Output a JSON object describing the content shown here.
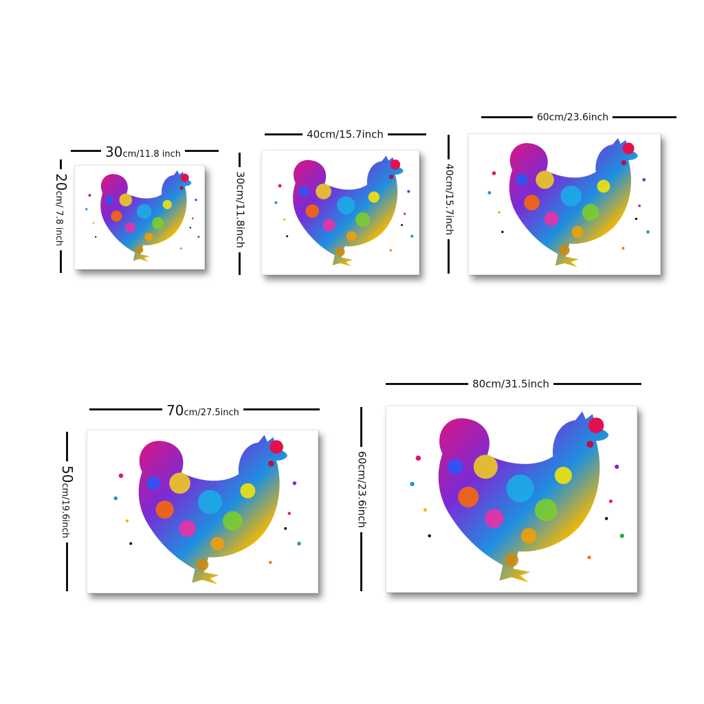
{
  "colors": {
    "line": "#111111",
    "frame_shadow": "#6f6f6f",
    "background": "#ffffff"
  },
  "artwork": {
    "subject_icon": "watercolor-chicken-icon"
  },
  "sizes": [
    {
      "width_cm": "30",
      "width_rest": "cm/11.8 inch",
      "height_cm": "20",
      "height_rest": "cm/ 7.8 inch"
    },
    {
      "width_label": "40cm/15.7inch",
      "height_label": "30cm/11.8inch"
    },
    {
      "width_label": "60cm/23.6inch",
      "height_label": "40cm/15.7inch"
    },
    {
      "width_cm": "70",
      "width_rest": "cm/27.5inch",
      "height_cm": "50",
      "height_rest": "cm/19.6inch"
    },
    {
      "width_label": "80cm/31.5inch",
      "height_label": "60cm/23.6inch"
    }
  ]
}
